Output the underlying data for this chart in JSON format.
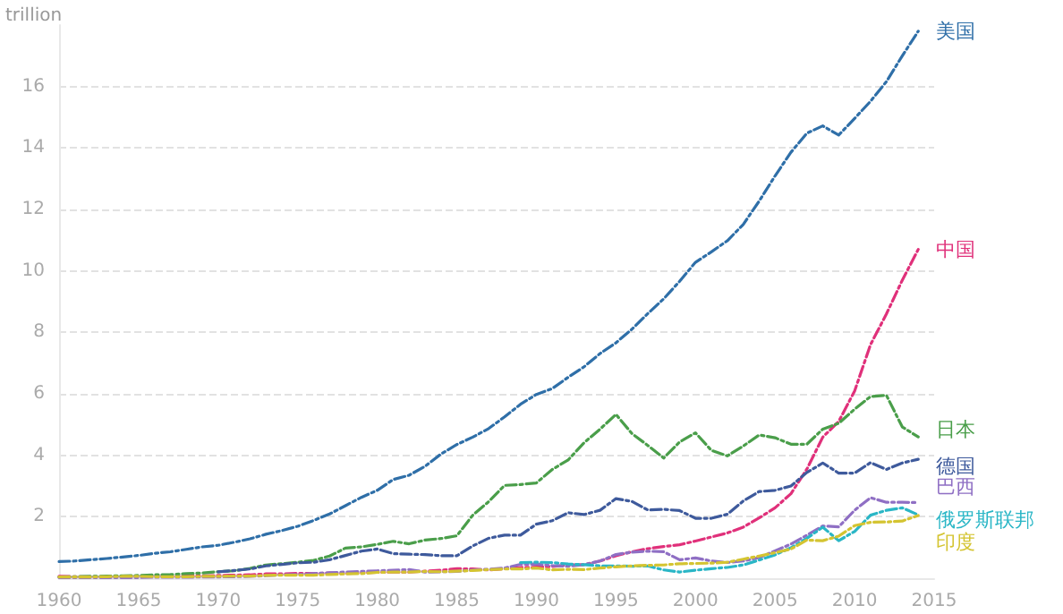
{
  "chart_data": {
    "type": "line",
    "ylabel": "trillion",
    "xlim": [
      1960,
      2015
    ],
    "xticks": [
      1960,
      1965,
      1970,
      1975,
      1980,
      1985,
      1990,
      1995,
      2000,
      2005,
      2010,
      2015
    ],
    "ylim": [
      0,
      18
    ],
    "yticks": [
      2,
      4,
      6,
      8,
      10,
      12,
      14,
      16
    ],
    "grid": "y",
    "legend": false,
    "marker": "none",
    "line_style": "dashed",
    "x": [
      1960,
      1961,
      1962,
      1963,
      1964,
      1965,
      1966,
      1967,
      1968,
      1969,
      1970,
      1971,
      1972,
      1973,
      1974,
      1975,
      1976,
      1977,
      1978,
      1979,
      1980,
      1981,
      1982,
      1983,
      1984,
      1985,
      1986,
      1987,
      1988,
      1989,
      1990,
      1991,
      1992,
      1993,
      1994,
      1995,
      1996,
      1997,
      1998,
      1999,
      2000,
      2001,
      2002,
      2003,
      2004,
      2005,
      2006,
      2007,
      2008,
      2009,
      2010,
      2011,
      2012,
      2013,
      2014
    ],
    "series": [
      {
        "name": "美国",
        "color": "#2f6fa8",
        "values": [
          0.54,
          0.56,
          0.6,
          0.64,
          0.69,
          0.74,
          0.81,
          0.86,
          0.94,
          1.02,
          1.07,
          1.17,
          1.28,
          1.43,
          1.55,
          1.69,
          1.88,
          2.09,
          2.36,
          2.63,
          2.86,
          3.21,
          3.35,
          3.64,
          4.04,
          4.35,
          4.59,
          4.87,
          5.25,
          5.66,
          5.98,
          6.17,
          6.54,
          6.88,
          7.31,
          7.66,
          8.1,
          8.61,
          9.09,
          9.66,
          10.28,
          10.62,
          10.98,
          11.51,
          12.27,
          13.09,
          13.86,
          14.48,
          14.72,
          14.42,
          14.96,
          15.52,
          16.16,
          17.0,
          17.8
        ]
      },
      {
        "name": "中国",
        "color": "#e0307a",
        "values": [
          0.06,
          0.05,
          0.05,
          0.05,
          0.06,
          0.07,
          0.08,
          0.07,
          0.07,
          0.08,
          0.09,
          0.1,
          0.11,
          0.14,
          0.14,
          0.16,
          0.15,
          0.17,
          0.15,
          0.18,
          0.19,
          0.2,
          0.2,
          0.23,
          0.26,
          0.31,
          0.3,
          0.27,
          0.31,
          0.35,
          0.36,
          0.38,
          0.43,
          0.44,
          0.56,
          0.73,
          0.86,
          0.96,
          1.03,
          1.09,
          1.21,
          1.34,
          1.47,
          1.66,
          1.96,
          2.29,
          2.75,
          3.55,
          4.59,
          5.1,
          6.09,
          7.6,
          8.6,
          9.7,
          10.7
        ]
      },
      {
        "name": "日本",
        "color": "#4a9e4a",
        "values": [
          0.04,
          0.05,
          0.06,
          0.07,
          0.08,
          0.09,
          0.11,
          0.12,
          0.15,
          0.17,
          0.21,
          0.24,
          0.32,
          0.43,
          0.47,
          0.52,
          0.58,
          0.72,
          0.98,
          1.02,
          1.1,
          1.2,
          1.12,
          1.24,
          1.29,
          1.38,
          2.05,
          2.49,
          3.02,
          3.05,
          3.1,
          3.54,
          3.85,
          4.41,
          4.85,
          5.33,
          4.71,
          4.32,
          3.91,
          4.43,
          4.73,
          4.16,
          3.98,
          4.3,
          4.66,
          4.57,
          4.36,
          4.36,
          4.85,
          5.04,
          5.5,
          5.91,
          5.95,
          4.92,
          4.6
        ]
      },
      {
        "name": "德国",
        "color": "#3e5a9c",
        "values": [
          null,
          null,
          null,
          null,
          null,
          null,
          null,
          null,
          null,
          null,
          0.21,
          0.25,
          0.3,
          0.4,
          0.45,
          0.5,
          0.52,
          0.6,
          0.74,
          0.88,
          0.95,
          0.8,
          0.78,
          0.77,
          0.73,
          0.73,
          1.05,
          1.3,
          1.4,
          1.4,
          1.76,
          1.87,
          2.13,
          2.07,
          2.21,
          2.59,
          2.5,
          2.22,
          2.24,
          2.2,
          1.95,
          1.95,
          2.08,
          2.51,
          2.82,
          2.86,
          3.0,
          3.44,
          3.75,
          3.42,
          3.42,
          3.76,
          3.54,
          3.75,
          3.87
        ]
      },
      {
        "name": "巴西",
        "color": "#8f6fc4",
        "values": [
          0.02,
          0.02,
          0.02,
          0.02,
          0.02,
          0.02,
          0.03,
          0.03,
          0.03,
          0.04,
          0.04,
          0.05,
          0.06,
          0.08,
          0.11,
          0.12,
          0.15,
          0.18,
          0.2,
          0.22,
          0.24,
          0.26,
          0.28,
          0.2,
          0.21,
          0.22,
          0.27,
          0.29,
          0.33,
          0.45,
          0.46,
          0.41,
          0.39,
          0.44,
          0.56,
          0.77,
          0.85,
          0.88,
          0.86,
          0.6,
          0.66,
          0.56,
          0.51,
          0.56,
          0.67,
          0.89,
          1.11,
          1.4,
          1.7,
          1.67,
          2.21,
          2.62,
          2.47,
          2.47,
          2.46
        ]
      },
      {
        "name": "俄罗斯联邦",
        "color": "#2ab6c6",
        "values": [
          null,
          null,
          null,
          null,
          null,
          null,
          null,
          null,
          null,
          null,
          null,
          null,
          null,
          null,
          null,
          null,
          null,
          null,
          null,
          null,
          null,
          null,
          null,
          null,
          null,
          null,
          null,
          null,
          null,
          0.51,
          0.52,
          0.51,
          0.46,
          0.44,
          0.4,
          0.4,
          0.39,
          0.4,
          0.27,
          0.2,
          0.26,
          0.31,
          0.35,
          0.43,
          0.59,
          0.76,
          0.99,
          1.3,
          1.66,
          1.22,
          1.52,
          2.05,
          2.21,
          2.29,
          2.06
        ]
      },
      {
        "name": "印度",
        "color": "#d4c431",
        "values": [
          0.04,
          0.04,
          0.04,
          0.05,
          0.06,
          0.06,
          0.05,
          0.05,
          0.05,
          0.06,
          0.06,
          0.07,
          0.07,
          0.09,
          0.1,
          0.1,
          0.1,
          0.12,
          0.14,
          0.15,
          0.19,
          0.2,
          0.2,
          0.22,
          0.21,
          0.23,
          0.25,
          0.28,
          0.3,
          0.3,
          0.33,
          0.27,
          0.29,
          0.28,
          0.33,
          0.37,
          0.4,
          0.42,
          0.43,
          0.47,
          0.48,
          0.49,
          0.52,
          0.62,
          0.72,
          0.83,
          0.95,
          1.24,
          1.22,
          1.37,
          1.71,
          1.82,
          1.83,
          1.86,
          2.04
        ]
      }
    ]
  }
}
